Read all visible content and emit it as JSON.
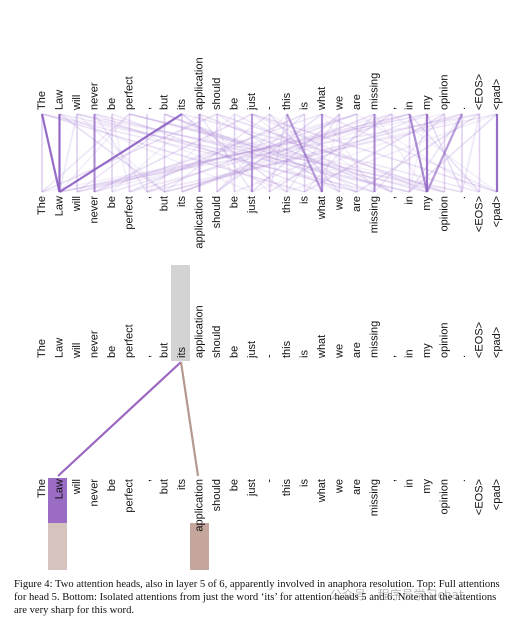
{
  "tokens": [
    "The",
    "Law",
    "will",
    "never",
    "be",
    "perfect",
    ",",
    "but",
    "its",
    "application",
    "should",
    "be",
    "just",
    "-",
    "this",
    "is",
    "what",
    "we",
    "are",
    "missing",
    ",",
    "in",
    "my",
    "opinion",
    ".",
    "<EOS>",
    "<pad>"
  ],
  "caption": "Figure 4: Two attention heads, also in layer 5 of 6, apparently involved in anaphora resolution. Top: Full attentions for head 5. Bottom: Isolated attentions from just the word ‘its’ for attention heads 5 and 6. Note that the attentions are very sharp for this word.",
  "watermark": "公众号 · 程序员学习chat"
}
